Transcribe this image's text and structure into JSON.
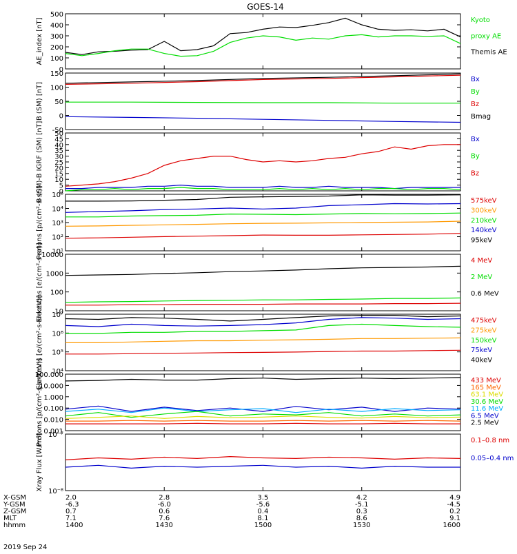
{
  "title": "GOES-14",
  "date_label": "2019 Sep 24",
  "footer": {
    "row_labels": [
      "X-GSM",
      "Y-GSM",
      "Z-GSM",
      "MLT",
      "hhmm"
    ],
    "columns": [
      [
        "2.0",
        "-6.3",
        "0.7",
        "7.1",
        "1400"
      ],
      [
        "2.8",
        "-6.0",
        "0.6",
        "7.6",
        "1430"
      ],
      [
        "3.5",
        "-5.6",
        "0.4",
        "8.1",
        "1500"
      ],
      [
        "4.2",
        "-5.1",
        "0.3",
        "8.6",
        "1530"
      ],
      [
        "4.9",
        "-4.5",
        "0.2",
        "9.1",
        "1600"
      ]
    ]
  },
  "chart_data": [
    {
      "type": "line",
      "ylabel": "AE_index [nT]",
      "ylim": [
        0,
        500
      ],
      "yticks": [
        "0",
        "100",
        "200",
        "300",
        "400",
        "500"
      ],
      "legend": [
        {
          "text": "Kyoto",
          "color": "#00dd00"
        },
        {
          "text": "proxy AE",
          "color": "#00dd00"
        },
        {
          "text": "Themis AE",
          "color": "#000000"
        }
      ],
      "x": [
        0,
        5,
        10,
        15,
        20,
        25,
        30,
        35,
        40,
        45,
        50,
        55,
        60,
        65,
        70,
        75,
        80,
        85,
        90,
        95,
        100,
        105,
        110,
        115,
        120
      ],
      "series": [
        {
          "name": "Themis AE",
          "color": "#000000",
          "values": [
            150,
            130,
            155,
            160,
            170,
            175,
            250,
            165,
            175,
            210,
            320,
            330,
            360,
            380,
            375,
            395,
            420,
            460,
            400,
            360,
            350,
            355,
            345,
            360,
            290
          ]
        },
        {
          "name": "Kyoto proxy AE",
          "color": "#00dd00",
          "values": [
            140,
            120,
            140,
            165,
            180,
            180,
            140,
            115,
            120,
            160,
            240,
            280,
            300,
            290,
            260,
            280,
            270,
            300,
            310,
            290,
            300,
            300,
            295,
            300,
            230
          ]
        }
      ]
    },
    {
      "type": "line",
      "ylabel": "B (SM) [nT]",
      "ylim": [
        -60,
        150
      ],
      "yticks": [
        "-50",
        "0",
        "50",
        "100",
        "150"
      ],
      "legend": [
        {
          "text": "Bx",
          "color": "#0000cc"
        },
        {
          "text": "By",
          "color": "#00dd00"
        },
        {
          "text": "Bz",
          "color": "#dd0000"
        },
        {
          "text": "Bmag",
          "color": "#000000"
        }
      ],
      "x": [
        0,
        20,
        40,
        60,
        80,
        100,
        120
      ],
      "series": [
        {
          "name": "Bmag",
          "color": "#000000",
          "values": [
            112,
            117,
            122,
            130,
            134,
            140,
            147
          ]
        },
        {
          "name": "Bz",
          "color": "#dd0000",
          "values": [
            108,
            112,
            118,
            126,
            130,
            136,
            142
          ]
        },
        {
          "name": "By",
          "color": "#00dd00",
          "values": [
            42,
            42,
            41,
            40,
            40,
            38,
            38
          ]
        },
        {
          "name": "Bx",
          "color": "#0000cc",
          "values": [
            -12,
            -15,
            -18,
            -22,
            -26,
            -30,
            -33
          ]
        }
      ]
    },
    {
      "type": "line",
      "ylabel": "B (SM)-B IGRF (SM) [nT]",
      "ylim": [
        0,
        50
      ],
      "yticks": [
        "0",
        "5",
        "10",
        "15",
        "20",
        "25",
        "30",
        "35",
        "40",
        "45",
        "50"
      ],
      "legend": [
        {
          "text": "Bx",
          "color": "#0000cc"
        },
        {
          "text": "By",
          "color": "#00dd00"
        },
        {
          "text": "Bz",
          "color": "#dd0000"
        }
      ],
      "x": [
        0,
        5,
        10,
        15,
        20,
        25,
        30,
        35,
        40,
        45,
        50,
        55,
        60,
        65,
        70,
        75,
        80,
        85,
        90,
        95,
        100,
        105,
        110,
        115,
        120
      ],
      "series": [
        {
          "name": "Bz",
          "color": "#dd0000",
          "values": [
            4,
            5,
            6,
            8,
            11,
            15,
            22,
            26,
            28,
            30,
            30,
            27,
            25,
            26,
            25,
            26,
            28,
            29,
            32,
            34,
            38,
            36,
            39,
            40,
            40
          ]
        },
        {
          "name": "Bx",
          "color": "#0000cc",
          "values": [
            2,
            2,
            3,
            3,
            3,
            4,
            4,
            5,
            4,
            4,
            3,
            3,
            3,
            4,
            3,
            3,
            4,
            3,
            3,
            3,
            2,
            3,
            3,
            3,
            3
          ]
        },
        {
          "name": "By",
          "color": "#00dd00",
          "values": [
            0,
            1,
            1,
            2,
            1,
            2,
            2,
            3,
            2,
            2,
            1,
            1,
            1,
            2,
            1,
            2,
            1,
            2,
            1,
            2,
            2,
            1,
            2,
            2,
            1
          ]
        }
      ]
    },
    {
      "type": "line",
      "ylabel": "Protons [p/(cm²-s-sr)]",
      "yscale": "log",
      "ylim": [
        1,
        100000
      ],
      "yticks": [
        "10¹",
        "10²",
        "10³",
        "10⁴",
        "10⁵"
      ],
      "legend": [
        {
          "text": "575keV",
          "color": "#dd0000"
        },
        {
          "text": "300keV",
          "color": "#ff9900"
        },
        {
          "text": "210keV",
          "color": "#00dd00"
        },
        {
          "text": "140keV",
          "color": "#0000cc"
        },
        {
          "text": "95keV",
          "color": "#000000"
        }
      ],
      "x": [
        0,
        10,
        20,
        30,
        40,
        50,
        60,
        70,
        80,
        90,
        100,
        110,
        120
      ],
      "series": [
        {
          "name": "95keV",
          "color": "#000000",
          "values": [
            25000,
            25000,
            26000,
            30000,
            35000,
            55000,
            60000,
            65000,
            70000,
            90000,
            85000,
            85000,
            90000
          ]
        },
        {
          "name": "140keV",
          "color": "#0000cc",
          "values": [
            2500,
            3000,
            3500,
            4500,
            5000,
            6000,
            5000,
            6000,
            10000,
            12000,
            15000,
            14000,
            15000
          ]
        },
        {
          "name": "210keV",
          "color": "#00dd00",
          "values": [
            1000,
            1000,
            1200,
            1300,
            1400,
            1800,
            1700,
            1600,
            1800,
            2000,
            1900,
            2000,
            2200
          ]
        },
        {
          "name": "300keV",
          "color": "#ff9900",
          "values": [
            150,
            160,
            180,
            200,
            220,
            250,
            270,
            280,
            300,
            320,
            340,
            360,
            420
          ]
        },
        {
          "name": "575keV",
          "color": "#dd0000",
          "values": [
            13,
            14,
            16,
            18,
            20,
            22,
            25,
            24,
            24,
            26,
            28,
            30,
            35
          ]
        }
      ]
    },
    {
      "type": "line",
      "ylabel": "Electrons [e/(cm²-s-sr)]",
      "yscale": "log",
      "ylim": [
        10,
        10000
      ],
      "yticks": [
        "10",
        "100",
        "1000",
        "10000"
      ],
      "legend": [
        {
          "text": "4 MeV",
          "color": "#dd0000"
        },
        {
          "text": "2 MeV",
          "color": "#00dd00"
        },
        {
          "text": "0.6 MeV",
          "color": "#000000"
        }
      ],
      "x": [
        0,
        10,
        20,
        30,
        40,
        50,
        60,
        70,
        80,
        90,
        100,
        110,
        120
      ],
      "series": [
        {
          "name": "0.6 MeV",
          "color": "#000000",
          "values": [
            750,
            800,
            850,
            950,
            1050,
            1200,
            1300,
            1450,
            1700,
            1900,
            2000,
            2100,
            2300
          ]
        },
        {
          "name": "2 MeV",
          "color": "#00dd00",
          "values": [
            28,
            30,
            31,
            33,
            35,
            36,
            38,
            38,
            40,
            42,
            45,
            45,
            48
          ]
        },
        {
          "name": "4 MeV",
          "color": "#dd0000",
          "values": [
            20,
            20,
            21,
            21,
            22,
            22,
            22,
            23,
            23,
            23,
            24,
            24,
            25
          ]
        }
      ]
    },
    {
      "type": "line",
      "ylabel": "Electrons [e/(cm²-s-sr-keV)]",
      "yscale": "log",
      "ylim": [
        100,
        10000000
      ],
      "yticks": [
        "10⁴",
        "10⁵",
        "10⁶",
        "10⁷"
      ],
      "legend": [
        {
          "text": "475keV",
          "color": "#dd0000"
        },
        {
          "text": "275keV",
          "color": "#ff9900"
        },
        {
          "text": "150keV",
          "color": "#00dd00"
        },
        {
          "text": "75keV",
          "color": "#0000cc"
        },
        {
          "text": "40keV",
          "color": "#000000"
        }
      ],
      "x": [
        0,
        10,
        20,
        30,
        40,
        50,
        60,
        70,
        80,
        90,
        100,
        110,
        120
      ],
      "series": [
        {
          "name": "40keV",
          "color": "#000000",
          "values": [
            4000000,
            3500000,
            5000000,
            4500000,
            3500000,
            2500000,
            3500000,
            5000000,
            7000000,
            8000000,
            8000000,
            6000000,
            7000000
          ]
        },
        {
          "name": "75keV",
          "color": "#0000cc",
          "values": [
            1000000,
            800000,
            1300000,
            1000000,
            900000,
            1000000,
            1200000,
            1700000,
            3500000,
            5000000,
            4500000,
            3500000,
            4000000
          ]
        },
        {
          "name": "150keV",
          "color": "#00dd00",
          "values": [
            200000,
            200000,
            250000,
            250000,
            300000,
            300000,
            350000,
            400000,
            1000000,
            1300000,
            1000000,
            800000,
            700000
          ]
        },
        {
          "name": "275keV",
          "color": "#ff9900",
          "values": [
            30000,
            30000,
            35000,
            40000,
            45000,
            45000,
            50000,
            55000,
            60000,
            70000,
            70000,
            75000,
            80000
          ]
        },
        {
          "name": "475keV",
          "color": "#dd0000",
          "values": [
            3000,
            3000,
            3200,
            3500,
            3700,
            4000,
            4200,
            4500,
            5000,
            5500,
            5500,
            6000,
            6500
          ]
        }
      ]
    },
    {
      "type": "line",
      "ylabel": "Protons [p/(cm²-s-sr-keV)]",
      "yscale": "log",
      "ylim": [
        0.001,
        100
      ],
      "yticks": [
        "0.001",
        "0.010",
        "0.100",
        "1.000",
        "10.000",
        "100.000"
      ],
      "legend": [
        {
          "text": "433 MeV",
          "color": "#dd0000"
        },
        {
          "text": "165 MeV",
          "color": "#ff6600"
        },
        {
          "text": "63.1 MeV",
          "color": "#dddd00"
        },
        {
          "text": "30.6 MeV",
          "color": "#00dd00"
        },
        {
          "text": "11.6 MeV",
          "color": "#00aaff"
        },
        {
          "text": "6.5 MeV",
          "color": "#0000cc"
        },
        {
          "text": "2.5 MeV",
          "color": "#000000"
        }
      ],
      "x": [
        0,
        10,
        20,
        30,
        40,
        50,
        60,
        70,
        80,
        90,
        100,
        110,
        120
      ],
      "series": [
        {
          "name": "2.5 MeV",
          "color": "#000000",
          "values": [
            25,
            28,
            35,
            30,
            30,
            40,
            45,
            35,
            40,
            45,
            40,
            45,
            50
          ]
        },
        {
          "name": "6.5 MeV",
          "color": "#0000cc",
          "values": [
            0.08,
            0.15,
            0.05,
            0.12,
            0.06,
            0.1,
            0.05,
            0.14,
            0.07,
            0.12,
            0.05,
            0.1,
            0.08
          ]
        },
        {
          "name": "11.6 MeV",
          "color": "#00aaff",
          "values": [
            0.05,
            0.08,
            0.04,
            0.1,
            0.05,
            0.07,
            0.09,
            0.04,
            0.08,
            0.05,
            0.09,
            0.06,
            0.07
          ]
        },
        {
          "name": "30.6 MeV",
          "color": "#00dd00",
          "values": [
            0.02,
            0.04,
            0.015,
            0.03,
            0.05,
            0.02,
            0.03,
            0.025,
            0.04,
            0.02,
            0.03,
            0.02,
            0.025
          ]
        },
        {
          "name": "63.1 MeV",
          "color": "#dddd00",
          "values": [
            0.012,
            0.015,
            0.02,
            0.012,
            0.018,
            0.014,
            0.016,
            0.02,
            0.015,
            0.013,
            0.018,
            0.014,
            0.016
          ]
        },
        {
          "name": "165 MeV",
          "color": "#ff6600",
          "values": [
            0.007,
            0.007,
            0.008,
            0.007,
            0.008,
            0.007,
            0.007,
            0.008,
            0.007,
            0.008,
            0.007,
            0.008,
            0.007
          ]
        },
        {
          "name": "433 MeV",
          "color": "#dd0000",
          "values": [
            0.004,
            0.004,
            0.004,
            0.004,
            0.0045,
            0.004,
            0.004,
            0.0045,
            0.004,
            0.004,
            0.0045,
            0.004,
            0.004
          ]
        }
      ]
    },
    {
      "type": "line",
      "ylabel": "Xray Flux [W/m²]",
      "yscale": "log",
      "ylim": [
        1e-08,
        1e-07
      ],
      "yticks": [
        "10⁻⁸",
        "10⁻⁷"
      ],
      "legend": [
        {
          "text": "0.1–0.8 nm",
          "color": "#dd0000"
        },
        {
          "text": "0.05–0.4 nm",
          "color": "#0000cc"
        }
      ],
      "x": [
        0,
        10,
        20,
        30,
        40,
        50,
        60,
        70,
        80,
        90,
        100,
        110,
        120
      ],
      "series": [
        {
          "name": "0.1–0.8 nm",
          "color": "#dd0000",
          "values": [
            3.5e-08,
            3.8e-08,
            3.6e-08,
            3.9e-08,
            3.7e-08,
            4e-08,
            3.8e-08,
            3.7e-08,
            3.9e-08,
            3.8e-08,
            3.6e-08,
            3.8e-08,
            3.7e-08
          ]
        },
        {
          "name": "0.05–0.4 nm",
          "color": "#0000cc",
          "values": [
            2.6e-08,
            2.8e-08,
            2.5e-08,
            2.7e-08,
            2.6e-08,
            2.7e-08,
            2.8e-08,
            2.6e-08,
            2.7e-08,
            2.5e-08,
            2.7e-08,
            2.6e-08,
            2.6e-08
          ]
        }
      ]
    }
  ]
}
